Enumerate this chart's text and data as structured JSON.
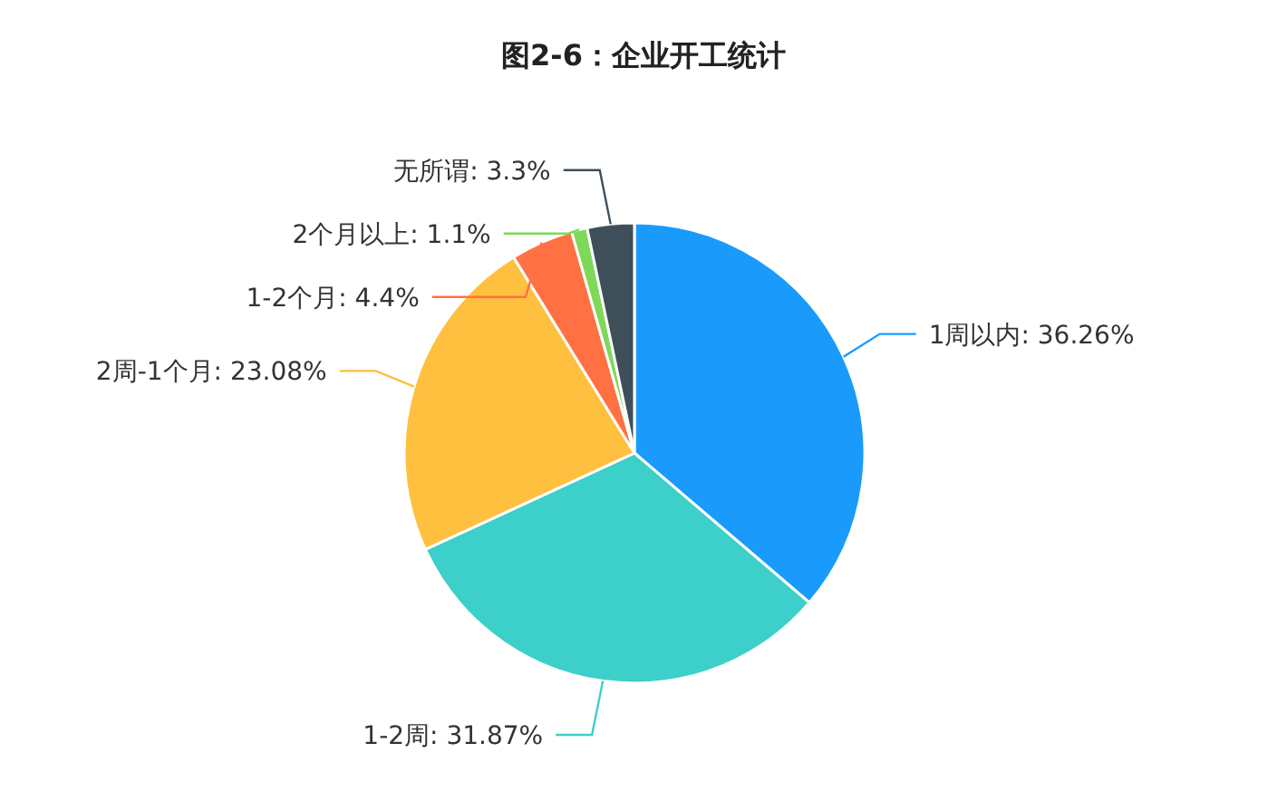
{
  "chart_data": {
    "type": "pie",
    "title": "图2-6：企业开工统计",
    "categories": [
      "1周以内",
      "1-2周",
      "2周-1个月",
      "1-2个月",
      "2个月以上",
      "无所谓"
    ],
    "values": [
      36.26,
      31.87,
      23.08,
      4.4,
      1.1,
      3.3
    ],
    "value_labels": [
      "36.26%",
      "31.87%",
      "23.08%",
      "4.4%",
      "1.1%",
      "3.3%"
    ],
    "colors": [
      "#1a9bfc",
      "#3dcfc9",
      "#ffc03f",
      "#ff7143",
      "#7fd858",
      "#3f4f59"
    ]
  }
}
